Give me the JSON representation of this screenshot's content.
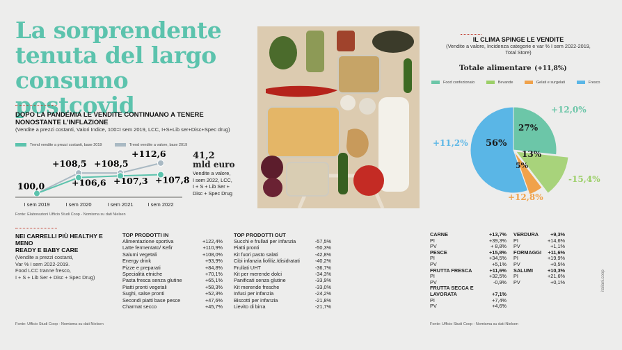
{
  "title": [
    "La sorprendente",
    "tenuta del largo",
    "consumo postcovid"
  ],
  "section1": {
    "heading": [
      "DOPO LA PANDEMIA LE VENDITE CONTINUANO A TENERE",
      "NONOSTANTE L'INFLAZIONE"
    ],
    "subheading": "(Vendite a prezzi costanti, Valori Indice, 100=I sem 2019, LCC, I+S+Lib ser+Disc+Spec drug)",
    "legend": [
      "Trend vendite a prezzi costanti, base 2019",
      "Trend vendite a valore, base 2019"
    ],
    "callout_value": "41,2",
    "callout_unit": "mld euro",
    "callout_text": [
      "Vendite a valore,",
      "I sem 2022, LCC,",
      "I + S + Lib Ser +",
      "Disc + Spec Drug"
    ],
    "source": "Fonte: Elaborazioni Ufficio Studi Coop - Nomisma su dati Nielsen"
  },
  "chart_data": {
    "type": "line",
    "title": "DOPO LA PANDEMIA LE VENDITE CONTINUANO A TENERE NONOSTANTE L'INFLAZIONE",
    "categories": [
      "I sem 2019",
      "I sem 2020",
      "I sem 2021",
      "I sem 2022"
    ],
    "series": [
      {
        "name": "Trend vendite a prezzi costanti, base 2019",
        "values": [
          100.0,
          106.6,
          107.3,
          107.8
        ],
        "labels": [
          "100,0",
          "+106,6",
          "+107,3",
          "+107,8"
        ]
      },
      {
        "name": "Trend vendite a valore, base 2019",
        "values": [
          100.0,
          108.5,
          108.5,
          112.6
        ],
        "labels": [
          "100,0",
          "+108,5",
          "+108,5",
          "+112,6"
        ]
      }
    ],
    "colors": [
      "#5cc3ad",
      "#a9b9c3"
    ],
    "ylim": [
      99,
      114
    ]
  },
  "section2": {
    "heading": [
      "NEI CARRELLI PIÙ HEALTHY E MENO",
      "READY E BABY CARE"
    ],
    "subheading": [
      "(Vendite a prezzi costanti,",
      "Var % I sem 2022-2019.",
      "Food LCC tranne fresco,",
      "I + S + Lib Ser + Disc + Spec Drug)"
    ],
    "top_in_title": "TOP PRODOTTI IN",
    "top_in": [
      {
        "name": "Alimentazione sportiva",
        "value": "+122,4%"
      },
      {
        "name": "Latte fermentato/ Kefir",
        "value": "+110,9%"
      },
      {
        "name": "Salumi vegetali",
        "value": "+108,0%"
      },
      {
        "name": "Energy drink",
        "value": "+93,9%"
      },
      {
        "name": "Pizze e preparati",
        "value": "+84,8%"
      },
      {
        "name": "Specialità etniche",
        "value": "+70,1%"
      },
      {
        "name": "Pasta fresca senza glutine",
        "value": "+65,1%"
      },
      {
        "name": "Piatti pronti vegetali",
        "value": "+58,3%"
      },
      {
        "name": "Sughi, salse pronti",
        "value": "+52,3%"
      },
      {
        "name": "Secondi piatti base pesce",
        "value": "+47,6%"
      },
      {
        "name": "Charmat secco",
        "value": "+45,7%"
      }
    ],
    "top_out_title": "TOP PRODOTTI OUT",
    "top_out": [
      {
        "name": "Succhi e frullati per infanzia",
        "value": "-57,5%"
      },
      {
        "name": "Piatti pronti",
        "value": "-50,3%"
      },
      {
        "name": "Kit fuori pasto salati",
        "value": "-42,8%"
      },
      {
        "name": "Cibi infanzia liofiliz./disidratati",
        "value": "-40,2%"
      },
      {
        "name": "Frullati UHT",
        "value": "-36,7%"
      },
      {
        "name": "Kit per merende dolci",
        "value": "-34,3%"
      },
      {
        "name": "Panificati senza glutine",
        "value": "-33,9%"
      },
      {
        "name": "Kit merende fresche",
        "value": "-33,0%"
      },
      {
        "name": "Infusi per infanzia",
        "value": "-24,2%"
      },
      {
        "name": "Biscotti per infanzia",
        "value": "-21,8%"
      },
      {
        "name": "Lievito di birra",
        "value": "-21,7%"
      }
    ],
    "source": "Fonte: Ufficio Studi Coop - Nomisma su dati Nielsen"
  },
  "section3": {
    "heading": "IL CLIMA SPINGE LE VENDITE",
    "subheading": [
      "(Vendite a valore, Incidenza categorie e var % I sem 2022-2019,",
      "Total Store)"
    ],
    "total_label": "Totale alimentare",
    "total_value": "(+11,8%)",
    "legend": [
      "Food confezionato",
      "Bevande",
      "Gelati e surgelati",
      "Fresco"
    ],
    "pie": [
      {
        "name": "Fresco",
        "share": 56,
        "share_label": "56%",
        "growth": "+11,2%",
        "color": "#5ab6e6"
      },
      {
        "name": "Food confezionato",
        "share": 27,
        "share_label": "27%",
        "growth": "+12,0%",
        "color": "#6cc6a8"
      },
      {
        "name": "Bevande",
        "share": 13,
        "share_label": "13%",
        "growth": "-15,4%",
        "color": "#9ccf68"
      },
      {
        "name": "Gelati e surgelati",
        "share": 5,
        "share_label": "5%",
        "growth": "+12,8%",
        "color": "#f0a24b"
      }
    ],
    "categories_left": [
      {
        "name": "CARNE",
        "total": "+13,7%",
        "pi": "+39,3%",
        "pv": "+ 8,8%"
      },
      {
        "name": "PESCE",
        "total": "+15,8%",
        "pi": "+34,5%",
        "pv": "+5,1%"
      },
      {
        "name": "FRUTTA FRESCA",
        "total": "+11,6%",
        "pi": "+32,5%",
        "pv": "-0,9%"
      },
      {
        "name": "FRUTTA SECCA E LAVORATA",
        "total": "+7,1%",
        "pi": "+7,4%",
        "pv": "+4,6%"
      }
    ],
    "categories_right": [
      {
        "name": "VERDURA",
        "total": "+9,3%",
        "pi": "+14,6%",
        "pv": "+1,1%"
      },
      {
        "name": "FORMAGGI",
        "total": "+11,6%",
        "pi": "+19,9%",
        "pv": "+0,5%"
      },
      {
        "name": "SALUMI",
        "total": "+10,3%",
        "pi": "+21,6%",
        "pv": "+0,1%"
      }
    ],
    "pi_label": "PI",
    "pv_label": "PV",
    "source": "Fonte: Ufficio Studi Coop - Nomisma su dati Nielsen",
    "credit": "italiani.coop"
  },
  "colors": {
    "accent": "#5cc3ad",
    "value_line": "#a9b9c3",
    "dots": "#c0392b"
  }
}
